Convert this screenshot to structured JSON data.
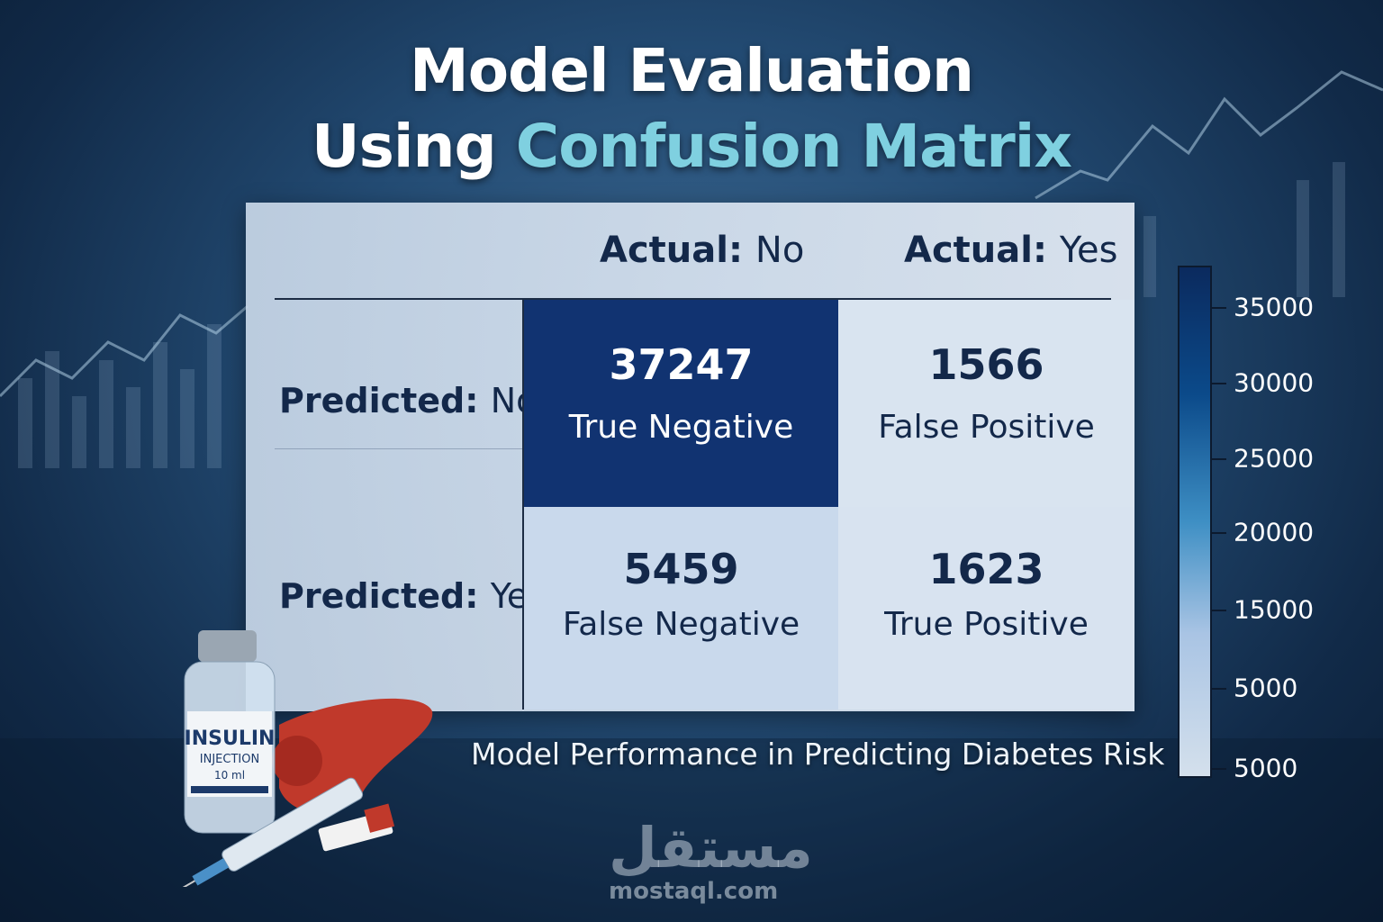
{
  "title": {
    "line1": "Model Evaluation",
    "line2_plain": "Using ",
    "line2_accent": "Confusion Matrix"
  },
  "caption": "Model Performance in Predicting Diabetes Risk",
  "watermark": {
    "arabic": "مستقل",
    "url": "mostaql.com"
  },
  "vial_label": {
    "line1": "INSULIN",
    "line2": "INJECTION",
    "line3": "10 ml"
  },
  "colors": {
    "accent": "#7fd0e0",
    "dark_cell": "#0f2f6e",
    "light_cell": "#dfe8f2",
    "text": "#13284a"
  },
  "chart_data": {
    "type": "heatmap",
    "title": "Model Evaluation Using Confusion Matrix",
    "col_labels": [
      {
        "key": "Actual:",
        "value": "No"
      },
      {
        "key": "Actual:",
        "value": "Yes"
      }
    ],
    "row_labels": [
      {
        "key": "Predicted:",
        "value": "No"
      },
      {
        "key": "Predicted:",
        "value": "Yes"
      }
    ],
    "cells": [
      [
        {
          "value": 37247,
          "display": "37247",
          "label": "True Negative"
        },
        {
          "value": 1566,
          "display": "1566",
          "label": "False Positive"
        }
      ],
      [
        {
          "value": 5459,
          "display": "5459",
          "label": "False Negative"
        },
        {
          "value": 1623,
          "display": "1623",
          "label": "True Positive"
        }
      ]
    ],
    "colorbar": {
      "ticks": [
        "35000",
        "30000",
        "25000",
        "20000",
        "15000",
        "5000",
        "5000"
      ],
      "range": [
        0,
        38000
      ],
      "colormap": "Blues"
    }
  }
}
